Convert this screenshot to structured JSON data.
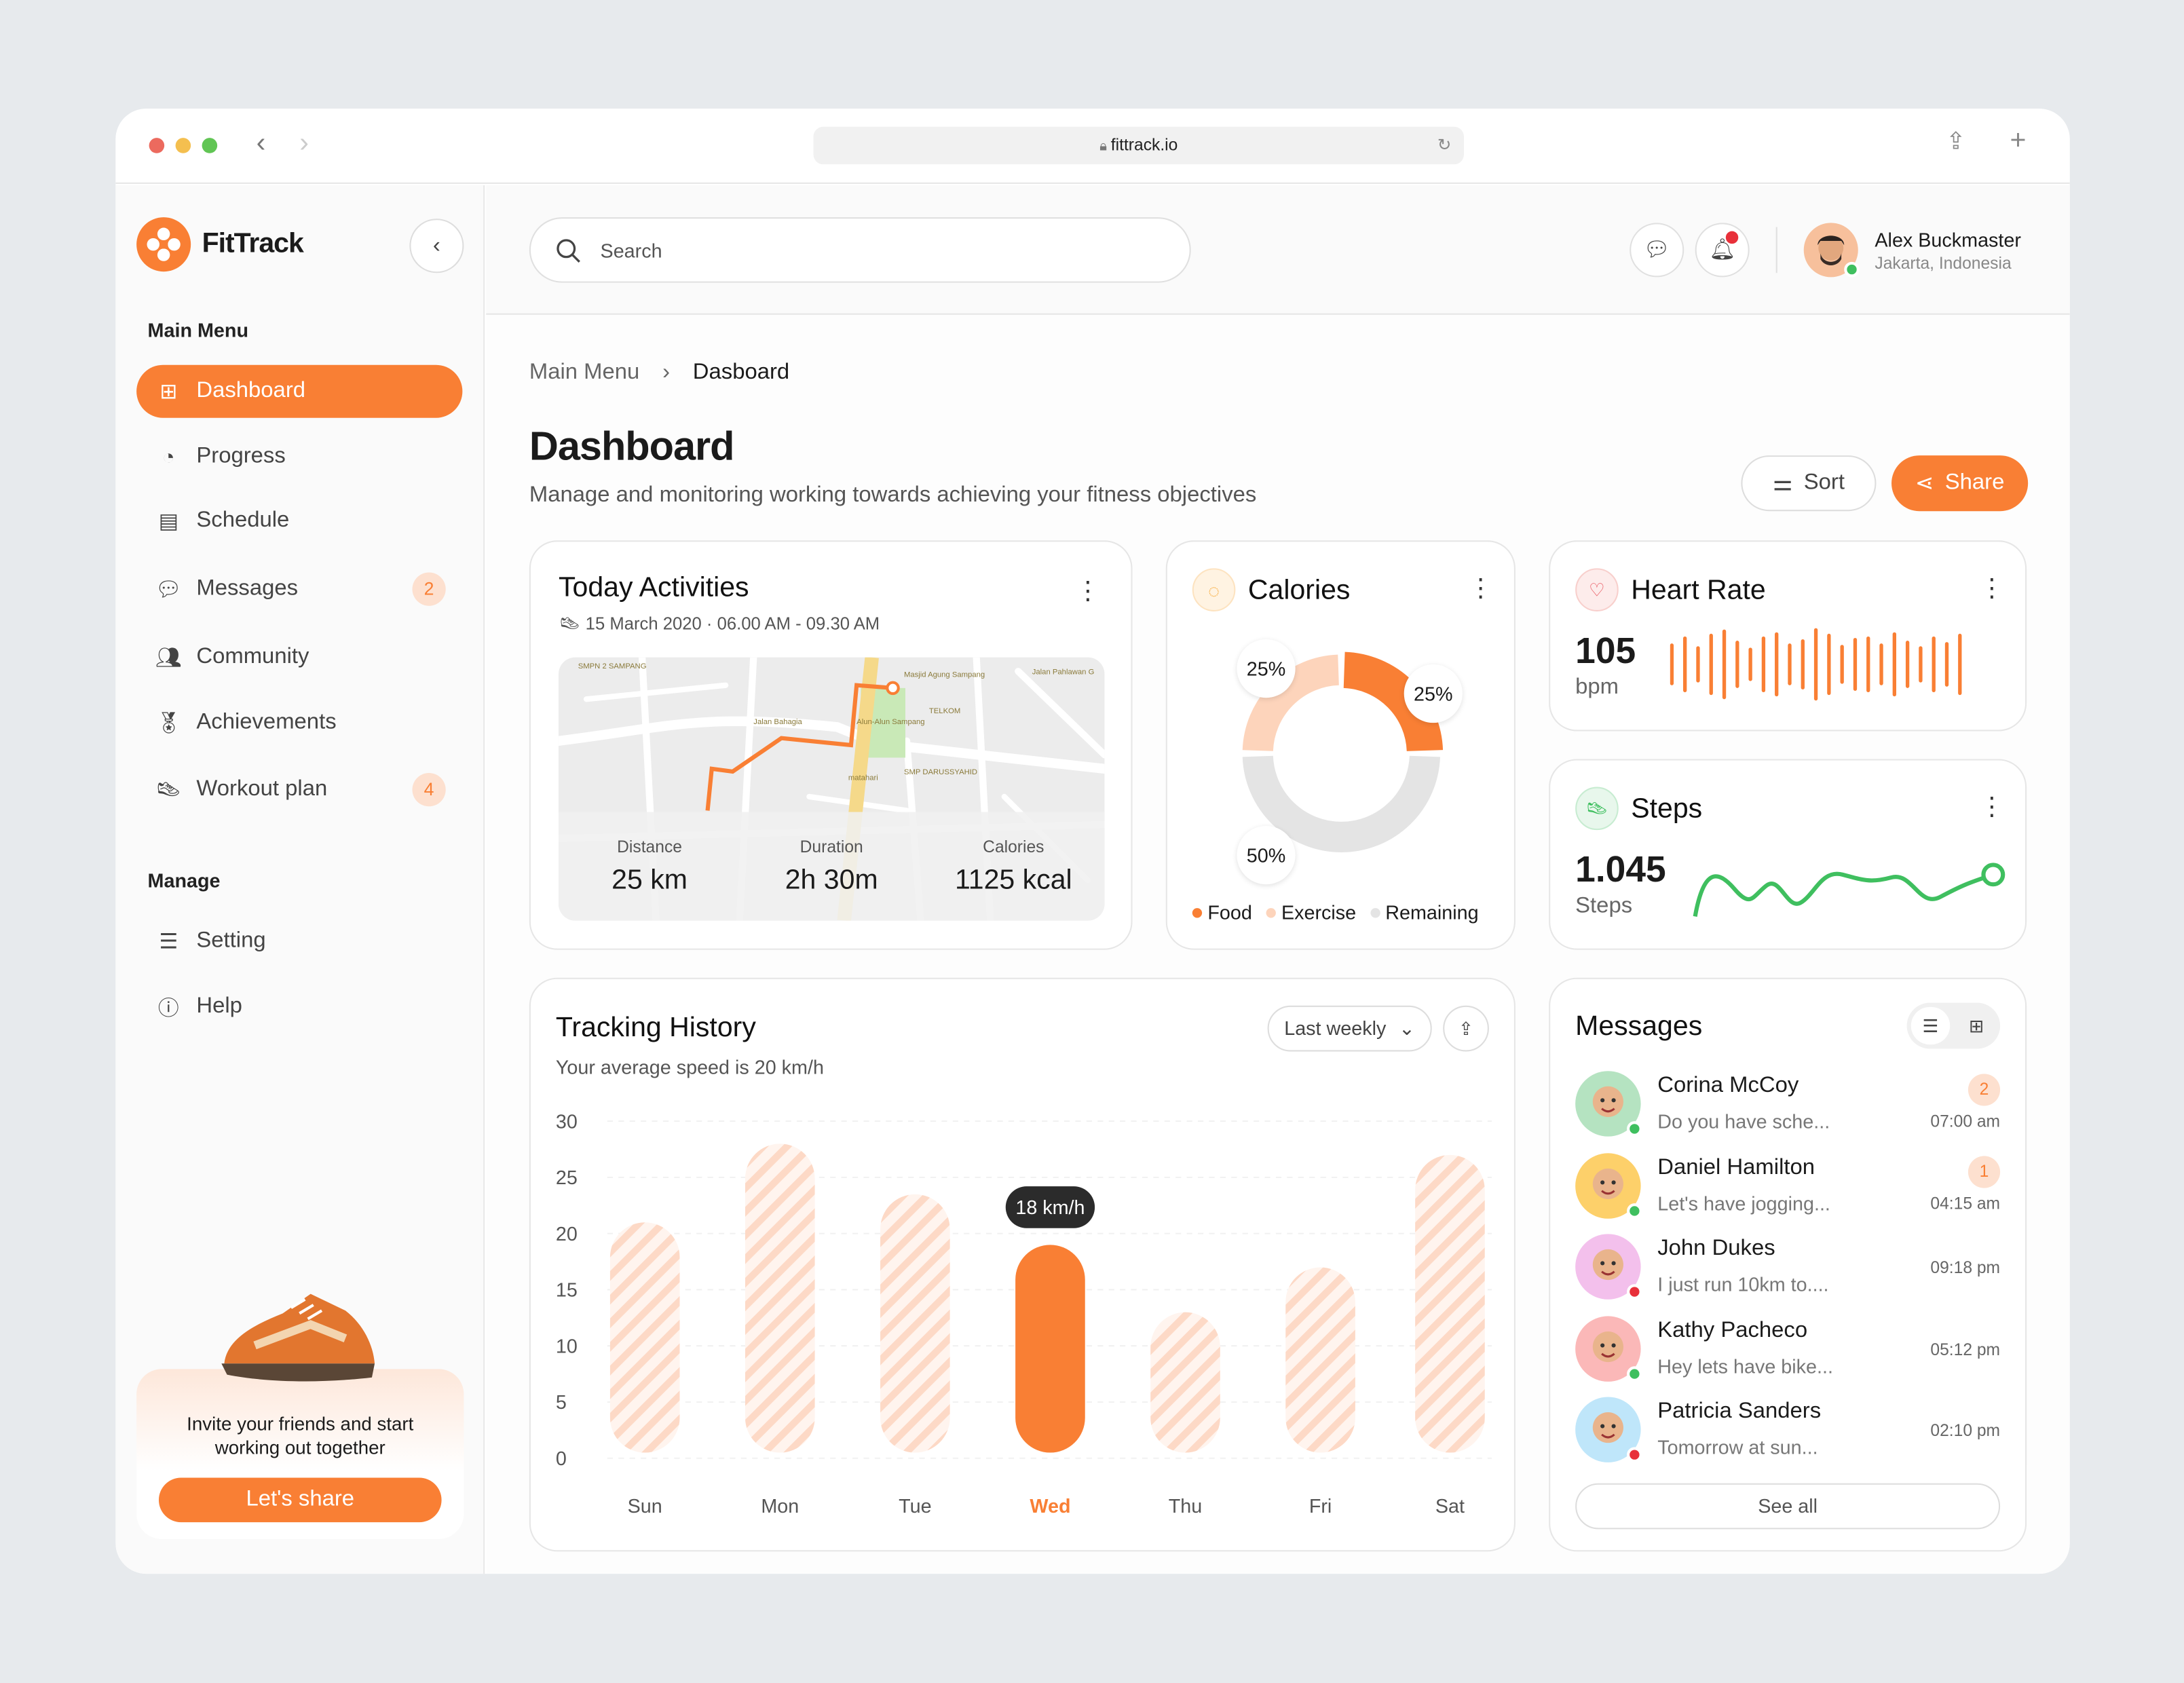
{
  "browser": {
    "url": "fittrack.io"
  },
  "app": {
    "name": "FitTrack"
  },
  "sidebar": {
    "main_menu_label": "Main Menu",
    "items": [
      {
        "label": "Dashboard",
        "icon": "grid-icon",
        "active": true
      },
      {
        "label": "Progress",
        "icon": "pie-chart-icon"
      },
      {
        "label": "Schedule",
        "icon": "calendar-icon"
      },
      {
        "label": "Messages",
        "icon": "chat-icon",
        "badge": "2"
      },
      {
        "label": "Community",
        "icon": "users-icon"
      },
      {
        "label": "Achievements",
        "icon": "medal-icon"
      },
      {
        "label": "Workout plan",
        "icon": "shoe-icon",
        "badge": "4"
      }
    ],
    "manage_label": "Manage",
    "manage_items": [
      {
        "label": "Setting",
        "icon": "sliders-icon"
      },
      {
        "label": "Help",
        "icon": "info-icon"
      }
    ],
    "promo": {
      "text": "Invite your friends and start working out together",
      "button": "Let's share"
    }
  },
  "header": {
    "search_placeholder": "Search",
    "user": {
      "name": "Alex Buckmaster",
      "location": "Jakarta, Indonesia"
    }
  },
  "breadcrumb": [
    "Main Menu",
    "Dasboard"
  ],
  "page": {
    "title": "Dashboard",
    "subtitle": "Manage and monitoring working towards achieving your fitness objectives",
    "sort": "Sort",
    "share": "Share"
  },
  "activities": {
    "title": "Today Activities",
    "date": "15 March 2020 · 06.00 AM - 09.30 AM",
    "map_labels": [
      "SMPN 2 SAMPANG",
      "Masjid Agung Sampang",
      "TELKOM",
      "Alun-Alun Sampang",
      "Jalan Bahagia",
      "SMP DARUSSYAHID",
      "matahari",
      "Jalan Pahlawan G"
    ],
    "stats": [
      {
        "label": "Distance",
        "value": "25 km"
      },
      {
        "label": "Duration",
        "value": "2h 30m"
      },
      {
        "label": "Calories",
        "value": "1125 kcal"
      }
    ]
  },
  "calories": {
    "title": "Calories",
    "segments": [
      {
        "name": "Food",
        "percent": 25,
        "label": "25%",
        "color": "#f97f34"
      },
      {
        "name": "Exercise",
        "percent": 25,
        "label": "25%",
        "color": "#fdd4bb"
      },
      {
        "name": "Remaining",
        "percent": 50,
        "label": "50%",
        "color": "#e4e4e4"
      }
    ]
  },
  "heart": {
    "title": "Heart Rate",
    "value": "105",
    "unit": "bpm"
  },
  "steps": {
    "title": "Steps",
    "value": "1.045",
    "unit": "Steps"
  },
  "tracking": {
    "title": "Tracking History",
    "subtitle": "Your average speed is 20 km/h",
    "period": "Last weekly",
    "tooltip": "18 km/h"
  },
  "chart_data": {
    "type": "bar",
    "categories": [
      "Sun",
      "Mon",
      "Tue",
      "Wed",
      "Thu",
      "Fri",
      "Sat"
    ],
    "values": [
      20,
      27,
      22.5,
      18,
      12,
      16,
      26
    ],
    "highlight": "Wed",
    "ylim": [
      0,
      30
    ],
    "yticks": [
      "30",
      "25",
      "20",
      "15",
      "10",
      "5",
      "0"
    ],
    "unit": "km/h",
    "colors": {
      "bar": "#f97f34",
      "muted": "#fde0cf"
    }
  },
  "messages": {
    "title": "Messages",
    "see_all": "See all",
    "items": [
      {
        "name": "Corina McCoy",
        "preview": "Do you have sche...",
        "time": "07:00 am",
        "unread": "2",
        "online": true,
        "bg": "#b5e3c1"
      },
      {
        "name": "Daniel Hamilton",
        "preview": "Let's have jogging...",
        "time": "04:15 am",
        "unread": "1",
        "online": true,
        "bg": "#fdd06a"
      },
      {
        "name": "John Dukes",
        "preview": "I just run 10km to....",
        "time": "09:18 pm",
        "online": false,
        "bg": "#f3c0ec"
      },
      {
        "name": "Kathy Pacheco",
        "preview": "Hey lets have bike...",
        "time": "05:12 pm",
        "online": true,
        "bg": "#fbb8b8"
      },
      {
        "name": "Patricia Sanders",
        "preview": "Tomorrow at sun...",
        "time": "02:10 pm",
        "online": false,
        "bg": "#bfe6fa"
      }
    ]
  },
  "colors": {
    "accent": "#f97f34",
    "online": "#3fbf5f",
    "offline": "#e8303a"
  }
}
